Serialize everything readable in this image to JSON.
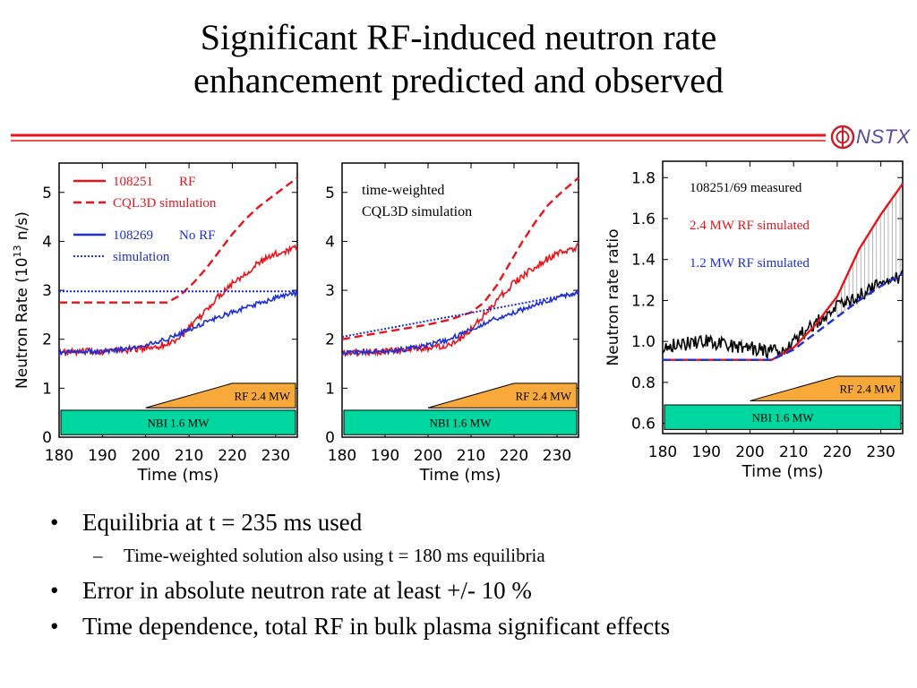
{
  "slide": {
    "title_line1": "Significant RF-induced neutron rate",
    "title_line2": "enhancement predicted and observed",
    "logo_text": "NSTX"
  },
  "bullets": [
    {
      "level": 1,
      "marker": "•",
      "text": "Equilibria at t = 235 ms used"
    },
    {
      "level": 2,
      "marker": "–",
      "text": "Time-weighted solution also using t = 180 ms equilibria"
    },
    {
      "level": 1,
      "marker": "•",
      "text": "Error in absolute neutron rate at least +/- 10 %"
    },
    {
      "level": 1,
      "marker": "•",
      "text": "Time dependence, total RF in bulk plasma significant effects"
    }
  ],
  "colors": {
    "red": "#e8141c",
    "blue": "#1d2fd6",
    "black": "#000000",
    "nbi": "#00d6a0",
    "rf": "#f8a93a",
    "hatch": "#888888",
    "logo": "#5a4a98"
  },
  "chart_data": [
    {
      "type": "line",
      "xlabel": "Time (ms)",
      "ylabel": "Neutron Rate (10",
      "ylabel_sup": "13",
      "ylabel_end": " n/s)",
      "xlim": [
        180,
        235
      ],
      "ylim": [
        0,
        5.6
      ],
      "xticks": [
        "180",
        "190",
        "200",
        "210",
        "220",
        "230"
      ],
      "yticks": [
        "0",
        "1",
        "2",
        "3",
        "4",
        "5"
      ],
      "legend": [
        {
          "shot": "108251",
          "label": "RF",
          "color": "#e8141c",
          "dash": "solid"
        },
        {
          "shot": "",
          "label": "CQL3D simulation",
          "color": "#e8141c",
          "dash": "dashed"
        },
        {
          "shot": "108269",
          "label": "No RF",
          "color": "#1d2fd6",
          "dash": "solid"
        },
        {
          "shot": "",
          "label": "simulation",
          "color": "#1d2fd6",
          "dash": "dotted"
        }
      ],
      "series": [
        {
          "name": "108251",
          "color": "#e8141c",
          "dash": "solid",
          "noise": 0.07,
          "x": [
            180,
            185,
            190,
            195,
            200,
            205,
            208,
            211,
            214,
            217,
            220,
            223,
            226,
            229,
            232,
            235
          ],
          "y": [
            1.72,
            1.74,
            1.76,
            1.78,
            1.82,
            1.9,
            2.05,
            2.3,
            2.6,
            2.9,
            3.15,
            3.35,
            3.55,
            3.7,
            3.8,
            3.9
          ]
        },
        {
          "name": "CQL3D simulation",
          "color": "#e8141c",
          "dash": "dashed",
          "noise": 0,
          "x": [
            180,
            205,
            208,
            211,
            214,
            217,
            220,
            223,
            226,
            229,
            232,
            235
          ],
          "y": [
            2.75,
            2.75,
            2.9,
            3.15,
            3.45,
            3.8,
            4.15,
            4.45,
            4.7,
            4.9,
            5.1,
            5.3
          ]
        },
        {
          "name": "108269",
          "color": "#1d2fd6",
          "dash": "solid",
          "noise": 0.05,
          "x": [
            180,
            185,
            190,
            195,
            200,
            205,
            210,
            215,
            220,
            225,
            230,
            235
          ],
          "y": [
            1.72,
            1.74,
            1.75,
            1.8,
            1.88,
            2.0,
            2.2,
            2.4,
            2.55,
            2.7,
            2.85,
            2.95
          ]
        },
        {
          "name": "simulation",
          "color": "#1d2fd6",
          "dash": "dotted",
          "noise": 0,
          "x": [
            180,
            235
          ],
          "y": [
            2.98,
            2.98
          ]
        }
      ],
      "bars": {
        "nbi": {
          "label": "NBI 1.6 MW",
          "x": [
            180,
            235
          ],
          "y": [
            0.05,
            0.55
          ]
        },
        "rf": {
          "label": "RF 2.4 MW",
          "x_start": 200,
          "x_ramp_end": 220,
          "x_end": 235,
          "y": [
            0.6,
            1.1
          ]
        }
      }
    },
    {
      "type": "line",
      "xlabel": "Time (ms)",
      "xlim": [
        180,
        235
      ],
      "ylim": [
        0,
        5.6
      ],
      "xticks": [
        "180",
        "190",
        "200",
        "210",
        "220",
        "230"
      ],
      "yticks": [
        "0",
        "1",
        "2",
        "3",
        "4",
        "5"
      ],
      "note": [
        "time-weighted",
        "CQL3D simulation"
      ],
      "series": [
        {
          "name": "108251",
          "color": "#e8141c",
          "dash": "solid",
          "noise": 0.07,
          "x": [
            180,
            185,
            190,
            195,
            200,
            205,
            208,
            211,
            214,
            217,
            220,
            223,
            226,
            229,
            232,
            235
          ],
          "y": [
            1.72,
            1.74,
            1.76,
            1.78,
            1.82,
            1.9,
            2.05,
            2.3,
            2.6,
            2.9,
            3.15,
            3.35,
            3.55,
            3.7,
            3.8,
            3.9
          ]
        },
        {
          "name": "CQL3D time-weighted",
          "color": "#e8141c",
          "dash": "dashed",
          "noise": 0,
          "x": [
            180,
            190,
            200,
            205,
            210,
            213,
            216,
            219,
            222,
            225,
            228,
            231,
            235
          ],
          "y": [
            2.0,
            2.15,
            2.3,
            2.4,
            2.55,
            2.75,
            3.1,
            3.55,
            4.0,
            4.4,
            4.75,
            5.0,
            5.3
          ]
        },
        {
          "name": "108269",
          "color": "#1d2fd6",
          "dash": "solid",
          "noise": 0.05,
          "x": [
            180,
            185,
            190,
            195,
            200,
            205,
            210,
            215,
            220,
            225,
            230,
            235
          ],
          "y": [
            1.72,
            1.74,
            1.75,
            1.8,
            1.88,
            2.0,
            2.2,
            2.4,
            2.55,
            2.7,
            2.85,
            2.95
          ]
        },
        {
          "name": "simulation",
          "color": "#1d2fd6",
          "dash": "dotted",
          "noise": 0,
          "x": [
            180,
            235
          ],
          "y": [
            2.05,
            2.95
          ]
        }
      ],
      "bars": {
        "nbi": {
          "label": "NBI 1.6 MW",
          "x": [
            180,
            235
          ],
          "y": [
            0.05,
            0.55
          ]
        },
        "rf": {
          "label": "RF 2.4 MW",
          "x_start": 200,
          "x_ramp_end": 220,
          "x_end": 235,
          "y": [
            0.6,
            1.1
          ]
        }
      }
    },
    {
      "type": "line",
      "xlabel": "Time (ms)",
      "ylabel": "Neutron rate ratio",
      "xlim": [
        180,
        235
      ],
      "ylim": [
        0.55,
        1.88
      ],
      "xticks": [
        "180",
        "190",
        "200",
        "210",
        "220",
        "230"
      ],
      "yticks": [
        "0.6",
        "0.8",
        "1.0",
        "1.2",
        "1.4",
        "1.6",
        "1.8"
      ],
      "ytick_values": [
        0.6,
        0.8,
        1.0,
        1.2,
        1.4,
        1.6,
        1.8
      ],
      "labels": [
        {
          "text": "108251/69 measured",
          "color": "#000000"
        },
        {
          "text": "2.4 MW RF simulated",
          "color": "#e8141c"
        },
        {
          "text": "1.2 MW RF simulated",
          "color": "#1d2fd6"
        }
      ],
      "series": [
        {
          "name": "108251/69 measured",
          "color": "#000000",
          "dash": "solid",
          "noise": 0.035,
          "x": [
            180,
            185,
            190,
            195,
            200,
            205,
            208,
            211,
            214,
            217,
            220,
            223,
            226,
            229,
            232,
            235
          ],
          "y": [
            0.98,
            0.99,
            1.0,
            0.98,
            0.97,
            0.95,
            0.96,
            1.02,
            1.07,
            1.13,
            1.17,
            1.2,
            1.24,
            1.27,
            1.3,
            1.32
          ]
        },
        {
          "name": "2.4 MW RF simulated",
          "color": "#e8141c",
          "dash": "solid",
          "noise": 0,
          "x": [
            180,
            205,
            210,
            215,
            220,
            225,
            230,
            235
          ],
          "y": [
            0.91,
            0.91,
            0.97,
            1.08,
            1.22,
            1.45,
            1.62,
            1.77
          ]
        },
        {
          "name": "1.2 MW RF simulated",
          "color": "#1d2fd6",
          "dash": "dashed",
          "noise": 0,
          "x": [
            180,
            205,
            210,
            215,
            220,
            225,
            230,
            235
          ],
          "y": [
            0.91,
            0.91,
            0.96,
            1.04,
            1.12,
            1.2,
            1.27,
            1.33
          ]
        }
      ],
      "hatch": {
        "x_from": 220,
        "x_to": 235
      },
      "bars": {
        "nbi": {
          "label": "NBI 1.6 MW",
          "x": [
            180,
            235
          ],
          "y": [
            0.57,
            0.69
          ]
        },
        "rf": {
          "label": "RF 2.4 MW",
          "x_start": 200,
          "x_ramp_end": 220,
          "x_end": 235,
          "y": [
            0.71,
            0.83
          ]
        }
      }
    }
  ]
}
